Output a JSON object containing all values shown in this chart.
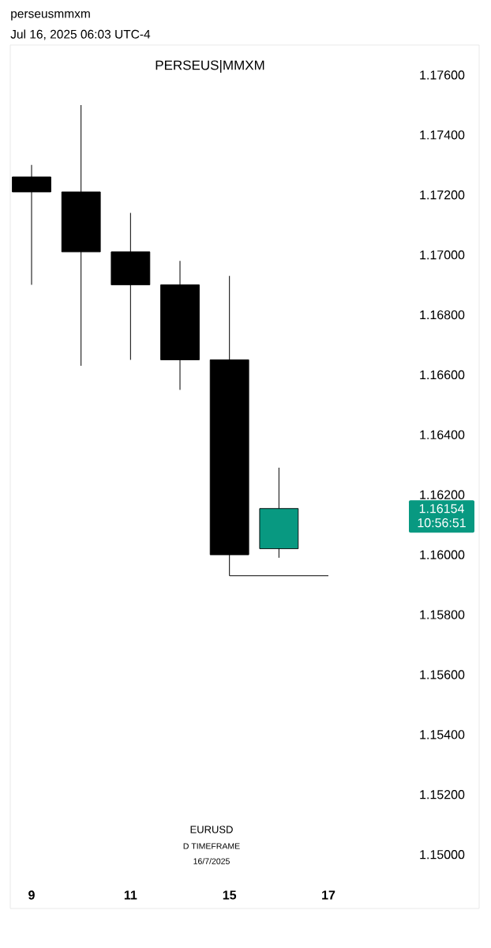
{
  "chart_data": {
    "type": "candlestick",
    "title": "PERSEUS|MMXM",
    "annotations": [
      "perseusmmxm",
      "Jul 16, 2025 06:03 UTC-4",
      "1.16154",
      "10:56:51",
      "EURUSD",
      "D TIMEFRAME",
      "16/7/2025"
    ],
    "categories": [
      "9",
      null,
      "11",
      null,
      "15",
      null,
      "17"
    ],
    "ohlc": [
      [
        1.1726,
        1.173,
        1.169,
        1.1721
      ],
      [
        1.1721,
        1.175,
        1.1663,
        1.1701
      ],
      [
        1.1701,
        1.1714,
        1.1665,
        1.169
      ],
      [
        1.169,
        1.1698,
        1.1655,
        1.1665
      ],
      [
        1.1665,
        1.1693,
        1.1593,
        1.16
      ],
      [
        1.1602,
        1.1629,
        1.1599,
        1.16154
      ],
      null
    ],
    "colors": [
      "#000000",
      "#000000",
      "#000000",
      "#000000",
      "#000000",
      "#089981",
      null
    ],
    "series": [
      {
        "type": "line",
        "color": "#000000",
        "values": [
          null,
          null,
          null,
          null,
          1.1593,
          1.1593,
          1.1593
        ]
      }
    ],
    "ylim": [
      1.1482,
      1.177
    ],
    "yticks": [
      {
        "value": 1.176,
        "label": "1.17600"
      },
      {
        "value": 1.174,
        "label": "1.17400"
      },
      {
        "value": 1.172,
        "label": "1.17200"
      },
      {
        "value": 1.17,
        "label": "1.17000"
      },
      {
        "value": 1.168,
        "label": "1.16800"
      },
      {
        "value": 1.166,
        "label": "1.16600"
      },
      {
        "value": 1.164,
        "label": "1.16400"
      },
      {
        "value": 1.162,
        "label": "1.16200"
      },
      {
        "value": 1.16,
        "label": "1.16000"
      },
      {
        "value": 1.158,
        "label": "1.15800"
      },
      {
        "value": 1.156,
        "label": "1.15600"
      },
      {
        "value": 1.154,
        "label": "1.15400"
      },
      {
        "value": 1.152,
        "label": "1.15200"
      },
      {
        "value": 1.15,
        "label": "1.15000"
      }
    ]
  }
}
